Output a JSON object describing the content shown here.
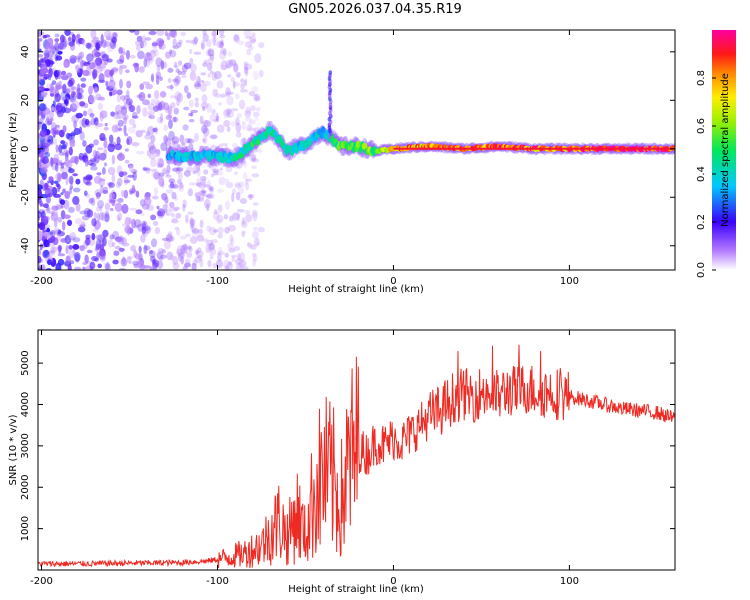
{
  "title": "GN05.2026.037.04.35.R19",
  "chart_data": [
    {
      "type": "heatmap",
      "title": "GN05.2026.037.04.35.R19",
      "xlabel": "Height of straight line (km)",
      "ylabel": "Frequency (Hz)",
      "xlim": [
        -202,
        160
      ],
      "ylim": [
        -50,
        49
      ],
      "x_ticks": [
        -200,
        -100,
        0,
        100
      ],
      "y_ticks": [
        -40,
        -20,
        0,
        20,
        40
      ],
      "colorbar": {
        "label": "Normalized spectral amplitude",
        "range": [
          0,
          1
        ],
        "ticks": [
          "0.0",
          "0.2",
          "0.4",
          "0.6",
          "0.8"
        ]
      },
      "ridge": {
        "description_points_x": [
          -128,
          -100,
          -90,
          -80,
          -70,
          -60,
          -50,
          -40,
          -30,
          -20,
          -10,
          0,
          20,
          40,
          60,
          80,
          100,
          120,
          140,
          160
        ],
        "frequency_y": [
          -3,
          -3,
          -4,
          2,
          8,
          -1,
          2,
          7,
          1,
          1,
          -1,
          0,
          1,
          0,
          1,
          0,
          0,
          0,
          0,
          0
        ],
        "amplitude": [
          0.35,
          0.4,
          0.45,
          0.5,
          0.45,
          0.45,
          0.4,
          0.4,
          0.6,
          0.6,
          0.6,
          0.85,
          0.85,
          0.9,
          0.9,
          0.9,
          0.9,
          1.0,
          1.0,
          1.0
        ]
      },
      "noise_region_x": [
        -202,
        -100
      ]
    },
    {
      "type": "line",
      "xlabel": "Height of straight line (km)",
      "ylabel": "SNR (10 * v/v)",
      "xlim": [
        -202,
        160
      ],
      "ylim": [
        0,
        5800
      ],
      "x_ticks": [
        -200,
        -100,
        0,
        100
      ],
      "y_ticks": [
        1000,
        2000,
        3000,
        4000,
        5000
      ],
      "series": [
        {
          "name": "SNR",
          "color": "#ee2a22",
          "x": [
            -202,
            -180,
            -160,
            -140,
            -120,
            -105,
            -95,
            -85,
            -75,
            -70,
            -65,
            -60,
            -55,
            -50,
            -45,
            -40,
            -35,
            -30,
            -25,
            -20,
            -15,
            -10,
            -5,
            0,
            5,
            10,
            15,
            20,
            25,
            30,
            35,
            40,
            45,
            50,
            55,
            60,
            65,
            70,
            75,
            80,
            85,
            90,
            95,
            100,
            110,
            120,
            130,
            140,
            150,
            160
          ],
          "y": [
            150,
            150,
            160,
            170,
            180,
            220,
            300,
            400,
            600,
            900,
            1200,
            800,
            1400,
            800,
            1900,
            2300,
            2200,
            1600,
            2600,
            2900,
            2800,
            3100,
            3000,
            3200,
            3100,
            3300,
            3500,
            3700,
            3800,
            4000,
            4200,
            4250,
            4200,
            4300,
            4250,
            4200,
            4350,
            4300,
            4400,
            4350,
            4300,
            4300,
            4250,
            4200,
            4100,
            4000,
            3900,
            3850,
            3800,
            3650
          ]
        }
      ]
    }
  ]
}
